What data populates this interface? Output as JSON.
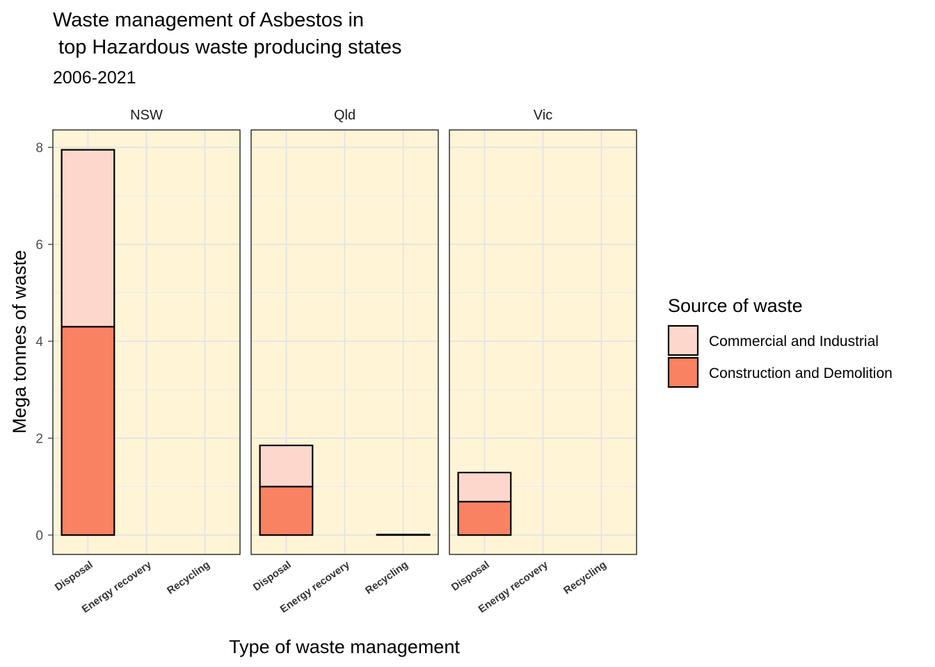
{
  "chart_data": {
    "type": "bar",
    "stacked": true,
    "title_line1": "Waste management of Asbestos in",
    "title_line2": " top Hazardous waste producing states",
    "subtitle": "2006-2021",
    "xlabel": "Type of waste management",
    "ylabel": "Mega tonnes of waste",
    "ylim": [
      -0.4,
      8.36
    ],
    "yticks": [
      0,
      2,
      4,
      6,
      8
    ],
    "grid": true,
    "panel_background": "#fff5d6",
    "legend_title": "Source of waste",
    "legend_position": "right",
    "categories": [
      "Disposal",
      "Energy recovery",
      "Recycling"
    ],
    "series": [
      {
        "name": "Construction and Demolition",
        "color": "#f98262"
      },
      {
        "name": "Commercial and Industrial",
        "color": "#fdd7cb"
      }
    ],
    "facets": [
      {
        "name": "NSW",
        "values": {
          "Construction and Demolition": [
            4.3,
            0,
            0
          ],
          "Commercial and Industrial": [
            3.65,
            0,
            0
          ]
        }
      },
      {
        "name": "Qld",
        "values": {
          "Construction and Demolition": [
            1.0,
            0,
            0.01
          ],
          "Commercial and Industrial": [
            0.85,
            0,
            0
          ]
        }
      },
      {
        "name": "Vic",
        "values": {
          "Construction and Demolition": [
            0.69,
            0,
            0
          ],
          "Commercial and Industrial": [
            0.6,
            0,
            0
          ]
        }
      }
    ]
  }
}
